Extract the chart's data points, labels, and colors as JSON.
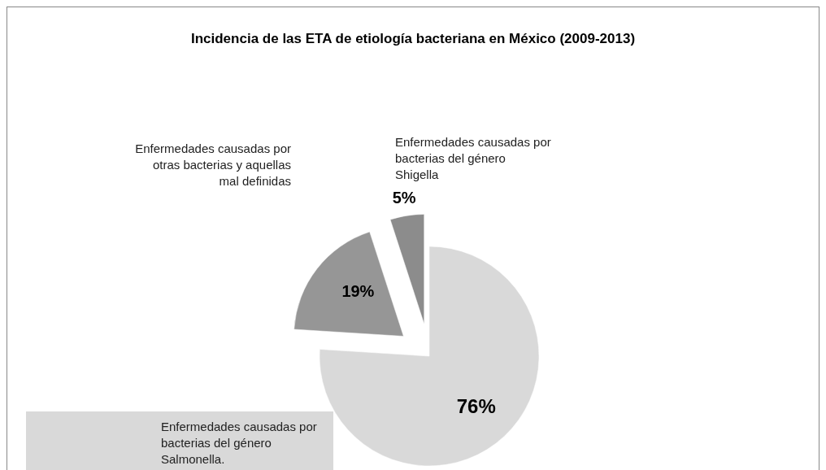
{
  "chart_data": {
    "type": "pie",
    "title": "Incidencia de las ETA de etiología bacteriana en México (2009-2013)",
    "categories": [
      "Enfermedades causadas por bacterias del género Salmonella.",
      "Enfermedades causadas por otras bacterias  y aquellas mal definidas",
      "Enfermedades causadas por bacterias del género Shigella"
    ],
    "values": [
      76,
      19,
      5
    ],
    "colors": [
      "#d9d9d9",
      "#969696",
      "#8c8c8c"
    ],
    "value_labels": [
      "76%",
      "19%",
      "5%"
    ]
  }
}
